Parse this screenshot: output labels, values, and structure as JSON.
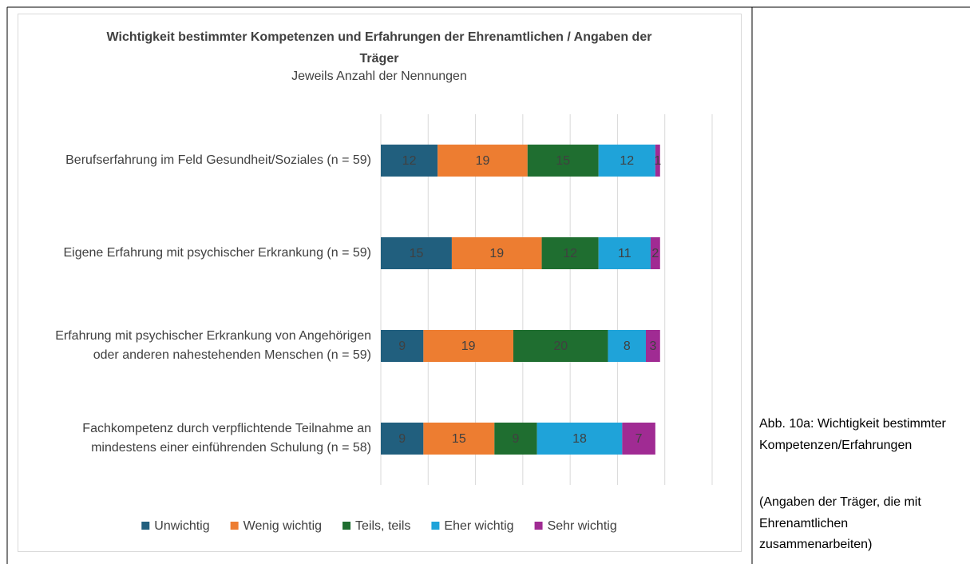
{
  "chart_data": {
    "type": "bar",
    "orientation": "horizontal",
    "stacked": true,
    "title": "Wichtigkeit bestimmter Kompetenzen und Erfahrungen der Ehrenamtlichen / Angaben der Träger",
    "subtitle": "Jeweils Anzahl der Nennungen",
    "categories": [
      "Berufserfahrung im Feld Gesundheit/Soziales (n = 59)",
      "Eigene Erfahrung mit psychischer Erkrankung (n = 59)",
      "Erfahrung mit psychischer Erkrankung von Angehörigen oder anderen nahestehenden Menschen (n = 59)",
      "Fachkompetenz durch verpflichtende Teilnahme an mindestens einer einführenden Schulung (n = 58)"
    ],
    "series": [
      {
        "name": "Unwichtig",
        "color": "#215f7e",
        "values": [
          12,
          15,
          9,
          9
        ]
      },
      {
        "name": "Wenig wichtig",
        "color": "#ed7d31",
        "values": [
          19,
          19,
          19,
          15
        ]
      },
      {
        "name": "Teils, teils",
        "color": "#1f6e30",
        "values": [
          15,
          12,
          20,
          9
        ]
      },
      {
        "name": "Eher wichtig",
        "color": "#1fa3d9",
        "values": [
          12,
          11,
          8,
          18
        ]
      },
      {
        "name": "Sehr wichtig",
        "color": "#a02b93",
        "values": [
          1,
          2,
          3,
          7
        ]
      }
    ],
    "xlim": [
      0,
      70
    ],
    "xticks": [
      0,
      10,
      20,
      30,
      40,
      50,
      60,
      70
    ],
    "grid": true,
    "legend": "bottom"
  },
  "caption": {
    "title": "Abb. 10a: Wichtigkeit bestimmter Kompetenzen/Erfahrungen",
    "note": "(Angaben der Träger, die mit Ehrenamtlichen zusammenarbeiten)"
  }
}
